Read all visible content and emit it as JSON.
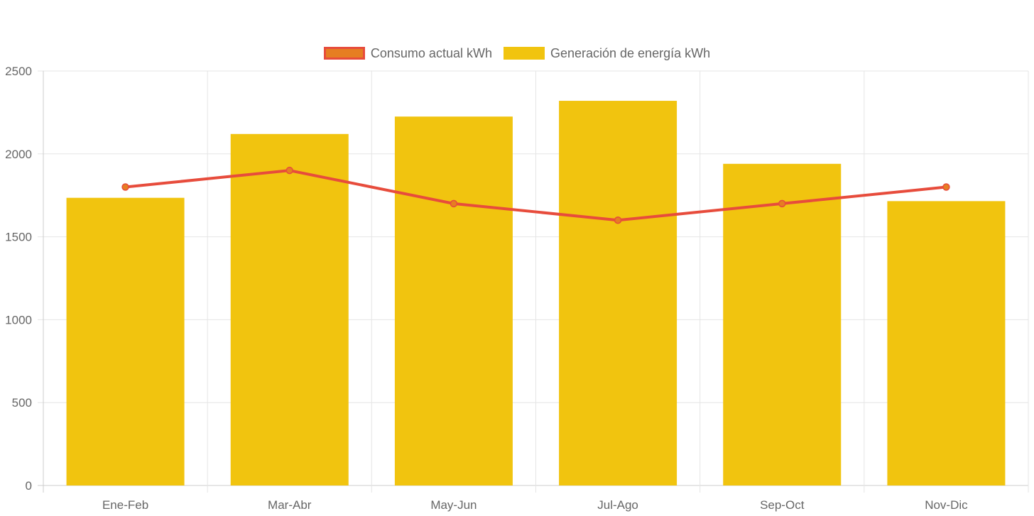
{
  "chart_data": {
    "type": "bar",
    "categories": [
      "Ene-Feb",
      "Mar-Abr",
      "May-Jun",
      "Jul-Ago",
      "Sep-Oct",
      "Nov-Dic"
    ],
    "series": [
      {
        "name": "Consumo actual kWh",
        "type": "line",
        "values": [
          1800,
          1900,
          1700,
          1600,
          1700,
          1800
        ],
        "color": "#e74c3c",
        "fill_color": "#e67e22"
      },
      {
        "name": "Generación de energía kWh",
        "type": "bar",
        "values": [
          1735,
          2120,
          2225,
          2320,
          1940,
          1715
        ],
        "color": "#f1c40f"
      }
    ],
    "ylim": [
      0,
      2500
    ],
    "yticks": [
      "0",
      "500",
      "1000",
      "1500",
      "2000",
      "2500"
    ],
    "grid": true,
    "legend_position": "top-center"
  }
}
